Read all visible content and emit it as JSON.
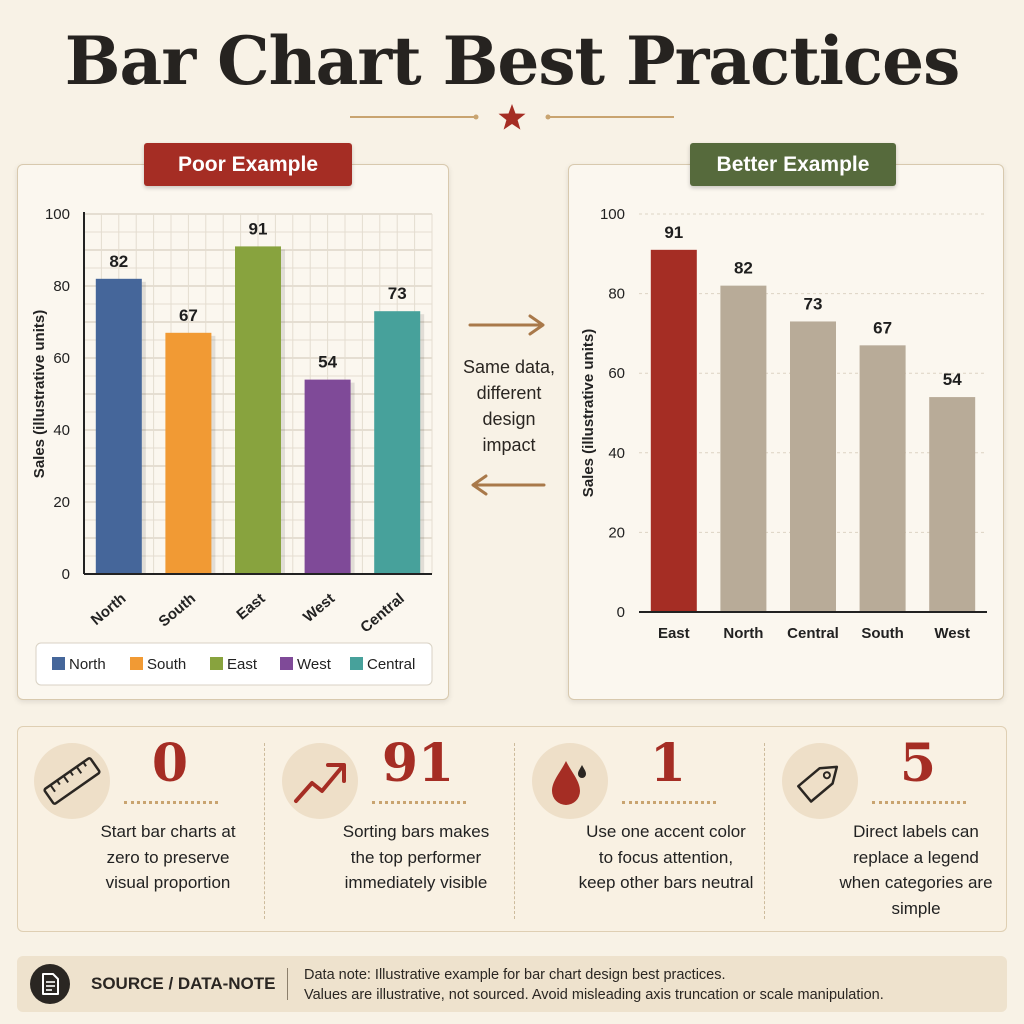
{
  "title": "Bar Chart Best Practices",
  "colors": {
    "accent": "#a52d24",
    "positive": "#566a3c",
    "neutral": "#b8ab98"
  },
  "chart_data": [
    {
      "type": "bar",
      "badge": "Poor Example",
      "categories": [
        "North",
        "South",
        "East",
        "West",
        "Central"
      ],
      "values": [
        82,
        67,
        91,
        54,
        73
      ],
      "colors": [
        "#45669a",
        "#f19a34",
        "#88a33e",
        "#7f4a98",
        "#47a19b"
      ],
      "ylabel": "Sales (illustrative units)",
      "ylim": [
        0,
        100
      ],
      "yticks": [
        0,
        20,
        40,
        60,
        80,
        100
      ],
      "grid": true,
      "legend": [
        "North",
        "South",
        "East",
        "West",
        "Central"
      ],
      "legend_position": "bottom"
    },
    {
      "type": "bar",
      "badge": "Better Example",
      "categories": [
        "East",
        "North",
        "Central",
        "South",
        "West"
      ],
      "values": [
        91,
        82,
        73,
        67,
        54
      ],
      "colors": [
        "#a52d24",
        "#b8ab98",
        "#b8ab98",
        "#b8ab98",
        "#b8ab98"
      ],
      "ylabel": "Sales (illustrative units)",
      "ylim": [
        0,
        100
      ],
      "yticks": [
        0,
        20,
        40,
        60,
        80,
        100
      ],
      "grid": true
    }
  ],
  "middle_note": [
    "Same data,",
    "different",
    "design",
    "impact"
  ],
  "tips": [
    {
      "icon": "ruler-icon",
      "value": "0",
      "text": [
        "Start bar charts at",
        "zero to preserve",
        "visual proportion"
      ]
    },
    {
      "icon": "trend-up-arrow-icon",
      "value": "91",
      "text": [
        "Sorting bars makes",
        "the top performer",
        "immediately visible"
      ]
    },
    {
      "icon": "paint-drop-icon",
      "value": "1",
      "text": [
        "Use one accent color",
        "to focus attention,",
        "keep other bars neutral"
      ]
    },
    {
      "icon": "price-tag-icon",
      "value": "5",
      "text": [
        "Direct labels can",
        "replace a legend",
        "when categories are",
        "simple"
      ]
    }
  ],
  "footer": {
    "icon": "document-icon",
    "label": "SOURCE / DATA-NOTE",
    "note_line1": "Data note: Illustrative example for bar chart design best practices.",
    "note_line2": "Values are illustrative, not sourced. Avoid misleading axis truncation or scale manipulation."
  }
}
